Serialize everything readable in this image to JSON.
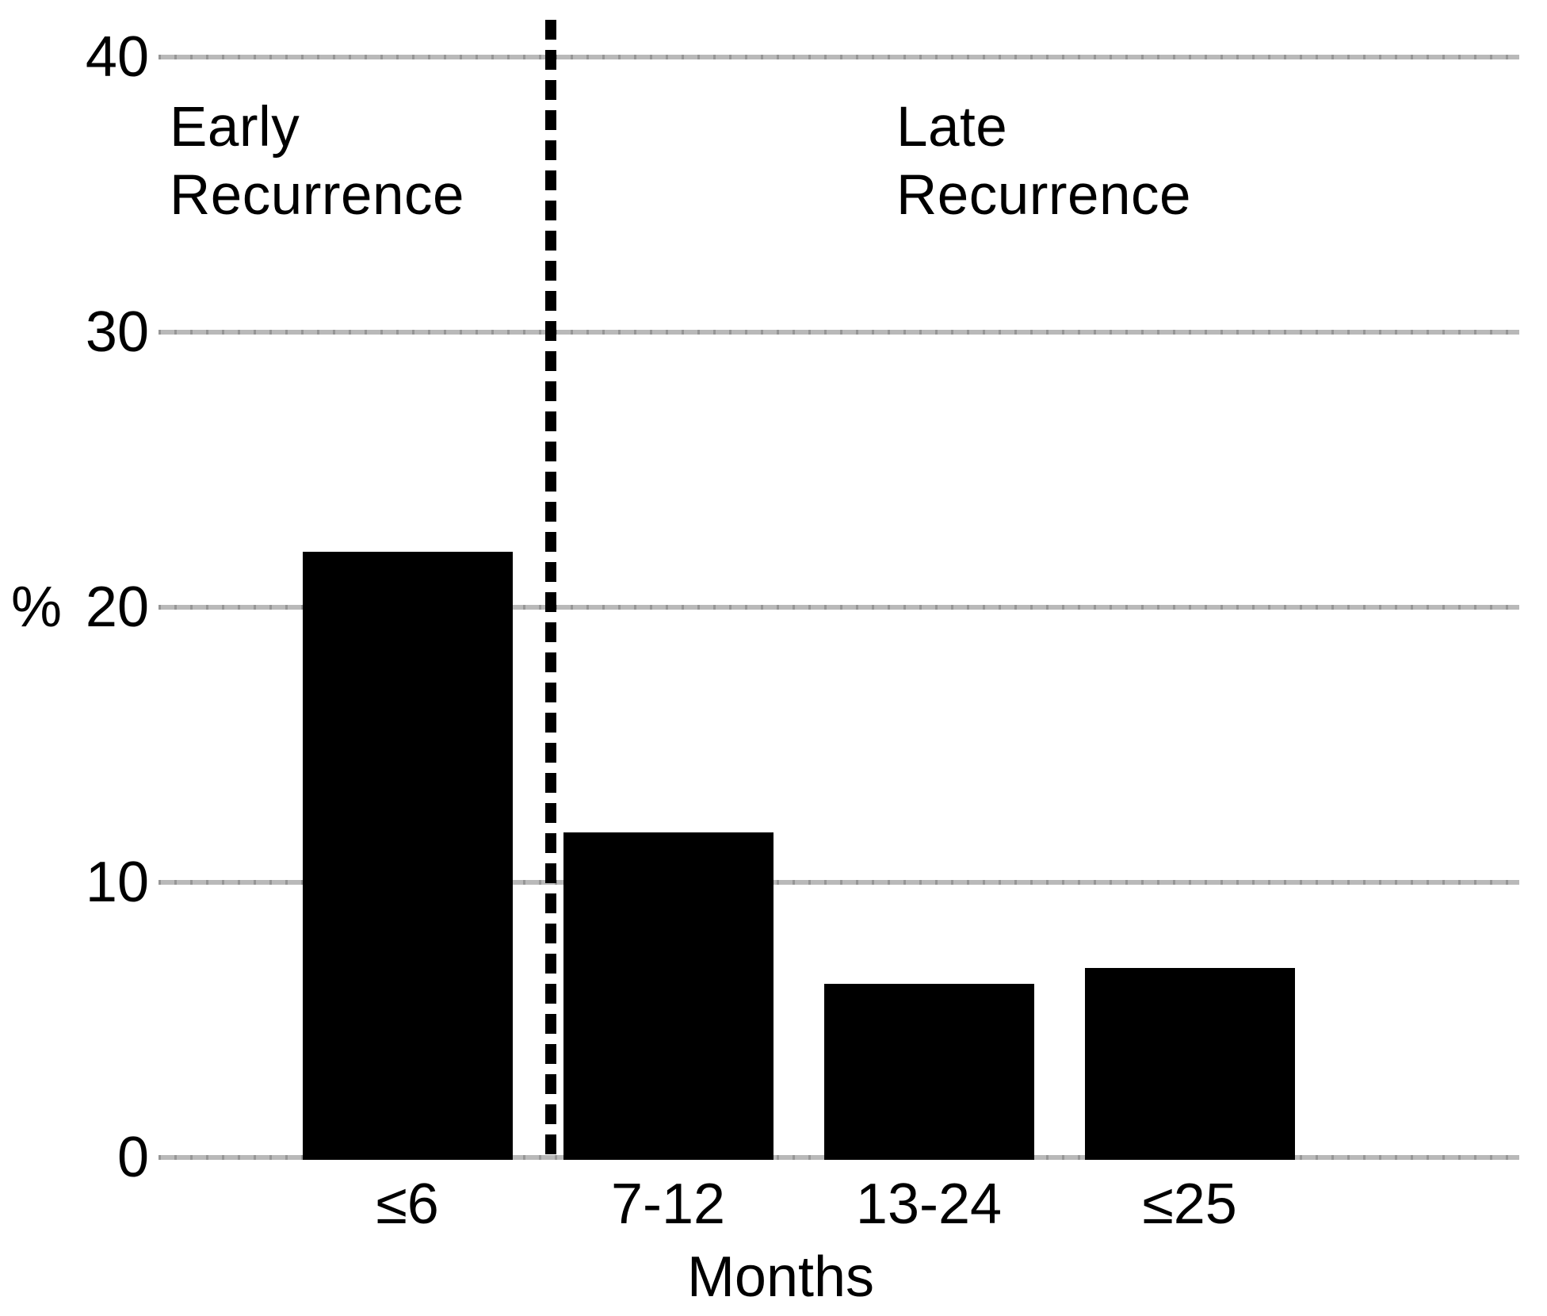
{
  "chart_data": {
    "type": "bar",
    "title": "",
    "categories": [
      "≤6",
      "7-12",
      "13-24",
      "≤25"
    ],
    "values": [
      22,
      11.8,
      6.3,
      6.9
    ],
    "xlabel": "Months",
    "ylabel": "%",
    "yticks": [
      40,
      30,
      20,
      10,
      0
    ],
    "ylim": [
      0,
      40
    ],
    "grid": "horizontal-gray-lines",
    "legend": "none",
    "bar_color": "#000000",
    "gridline_color": "#adadad",
    "divider_line": {
      "style": "dashed-vertical-black",
      "position": "between ≤6 and 7-12"
    },
    "annotations": [
      {
        "text": "Early Recurrence",
        "side": "left-of-dashed-line"
      },
      {
        "text": "Late Recurrence",
        "side": "right-of-dashed-line"
      }
    ]
  }
}
